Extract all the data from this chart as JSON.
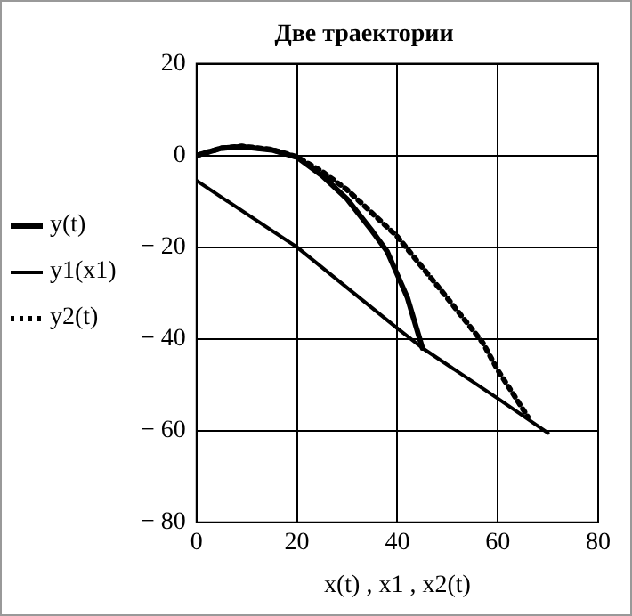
{
  "chart_data": {
    "type": "line",
    "title": "Две траектории",
    "xlabel": "x(t) , x1 , x2(t)",
    "xlim": [
      0,
      80
    ],
    "xticks": [
      0,
      20,
      40,
      60,
      80
    ],
    "ylim": [
      -80,
      20
    ],
    "yticks": [
      -80,
      -60,
      -40,
      -20,
      0,
      20
    ],
    "grid": true,
    "legend": "left",
    "marker": "none",
    "series": [
      {
        "name": "y(t)",
        "color": "#000000",
        "line_style": "solid",
        "x": [
          0,
          5,
          9,
          15,
          20,
          25,
          30,
          35,
          38,
          42,
          45
        ],
        "values": [
          0,
          1.6,
          1.9,
          1.2,
          -0.4,
          -4.4,
          -9.5,
          -16.5,
          -21,
          -31,
          -42
        ]
      },
      {
        "name": "y1(x1)",
        "color": "#000000",
        "line_style": "solid",
        "x": [
          0,
          20,
          40,
          45,
          60,
          70
        ],
        "values": [
          -5.5,
          -20,
          -37.7,
          -42,
          -53,
          -60.5
        ]
      },
      {
        "name": "y2(t)",
        "color": "#000000",
        "line_style": "dotted",
        "x": [
          0,
          5,
          9,
          15,
          20,
          25,
          30,
          40,
          49,
          57,
          60,
          66
        ],
        "values": [
          0,
          1.6,
          2,
          1.3,
          -0.3,
          -3.5,
          -7.5,
          -17.7,
          -29.8,
          -40.8,
          -46.8,
          -57
        ]
      }
    ]
  }
}
